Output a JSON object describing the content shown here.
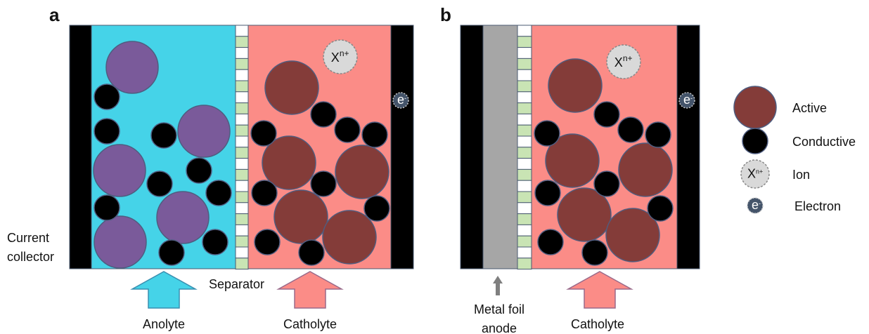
{
  "panel_a": {
    "label": "a",
    "current_collector": [
      "Current",
      "collector"
    ],
    "separator": "Separator",
    "anolyte": "Anolyte",
    "catholyte": "Catholyte"
  },
  "panel_b": {
    "label": "b",
    "anode": [
      "Metal foil",
      "anode"
    ],
    "catholyte": "Catholyte"
  },
  "ion_symbol": {
    "base": "X",
    "sup": "n+"
  },
  "electron_symbol": {
    "base": "e",
    "sup": "-"
  },
  "legend": [
    {
      "label": "Active"
    },
    {
      "label": "Conductive"
    },
    {
      "label": "Ion"
    },
    {
      "label": "Electron"
    }
  ]
}
